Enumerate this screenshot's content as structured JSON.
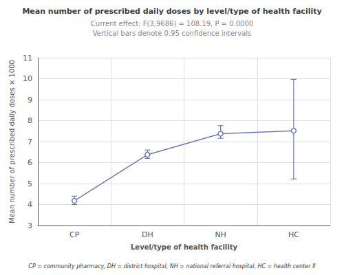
{
  "chart_data": {
    "type": "line",
    "title": "Mean number of prescribed daily doses by level/type of health facility",
    "subtitle": [
      "Current effect: F(3,9686) = 108.19, P = 0.0000",
      "Vertical bars denote 0.95 confidence intervals"
    ],
    "xlabel": "Level/type of health facility",
    "ylabel": "Mean number of prescribed daily doses × 1000",
    "footnote": "CP = community pharmacy, DH = district hospital, NH = national referral hospital, HC = health center II",
    "categories": [
      "CP",
      "DH",
      "NH",
      "HC"
    ],
    "values": [
      4.18,
      6.38,
      7.38,
      7.52
    ],
    "errors_low": [
      0.18,
      0.18,
      0.22,
      2.3
    ],
    "errors_high": [
      0.22,
      0.22,
      0.38,
      2.45
    ],
    "ylim": [
      3,
      11
    ],
    "yticks": [
      3,
      4,
      5,
      6,
      7,
      8,
      9,
      10,
      11
    ],
    "color": "#6b7ab5",
    "marker": "circle",
    "grid": true
  }
}
